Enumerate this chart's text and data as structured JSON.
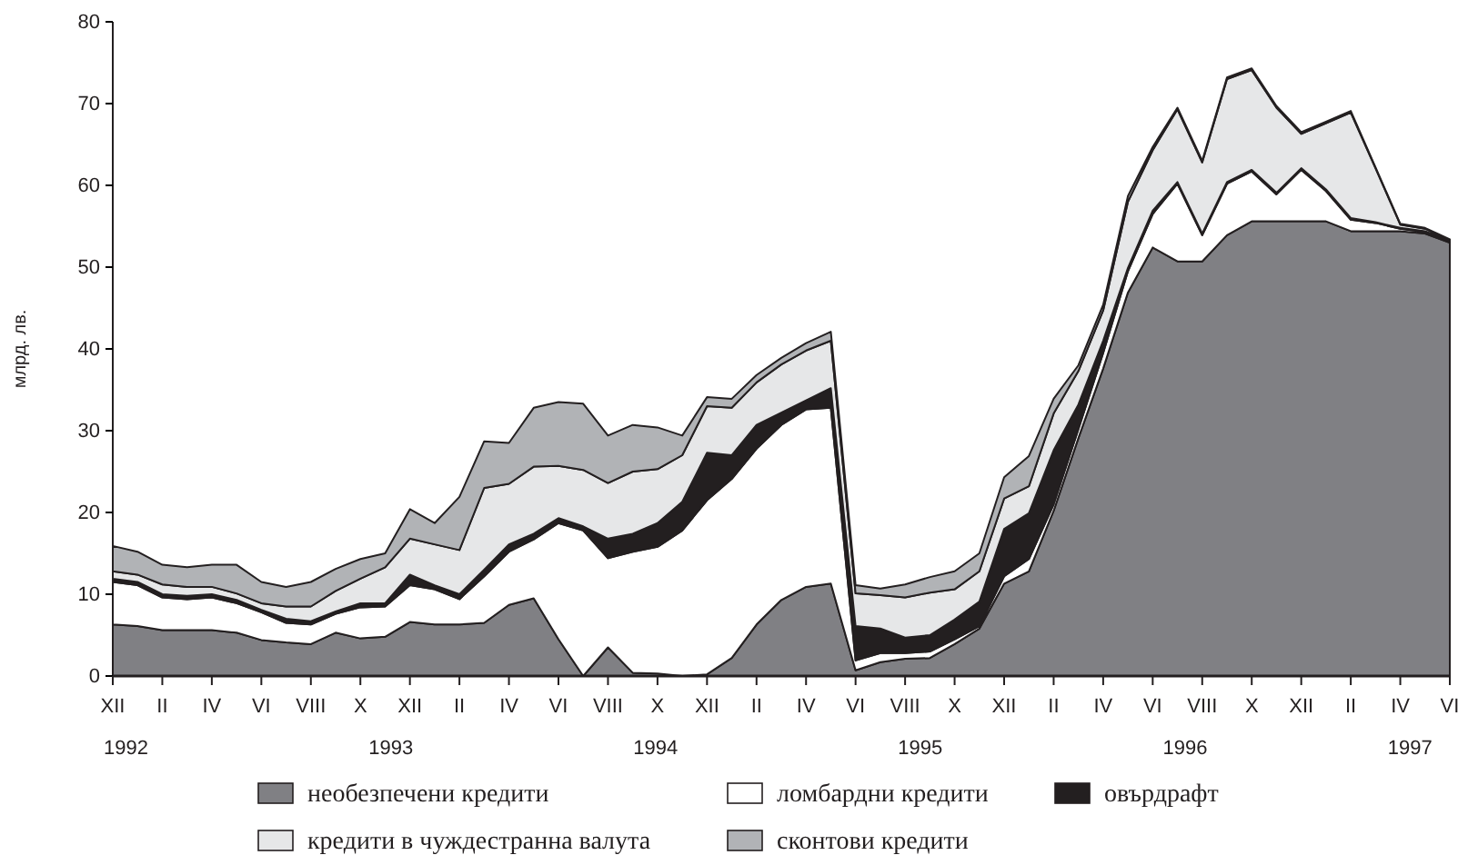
{
  "chart_data": {
    "type": "area",
    "stacked": true,
    "ylabel": "млрд. лв.",
    "legend": "bottom",
    "grid": false,
    "categories": [
      "XII",
      null,
      "II",
      null,
      "IV",
      null,
      "VI",
      null,
      "VIII",
      null,
      "X",
      null,
      "XII",
      null,
      "II",
      null,
      "IV",
      null,
      "VI",
      null,
      "VIII",
      null,
      "X",
      null,
      "XII",
      null,
      "II",
      null,
      "IV",
      null,
      "VI",
      null,
      "VIII",
      null,
      "X",
      null,
      "XII",
      null,
      "II",
      null,
      "IV",
      null,
      "VI",
      null,
      "VIII",
      null,
      "X",
      null,
      "XII",
      null,
      "II",
      null,
      "IV",
      null,
      "VI"
    ],
    "x2lim": [
      1992.45,
      1997.5
    ],
    "x2ticks": [
      {
        "value": 1992.5,
        "label": "1992"
      },
      {
        "value": 1993.5,
        "label": "1993"
      },
      {
        "value": 1994.5,
        "label": "1994"
      },
      {
        "value": 1995.5,
        "label": "1995"
      },
      {
        "value": 1996.5,
        "label": "1996"
      },
      {
        "value": 1997.35,
        "label": "1997"
      }
    ],
    "ylim": [
      0,
      80
    ],
    "yticks": [
      0,
      10,
      20,
      30,
      40,
      50,
      60,
      70,
      80
    ],
    "series": [
      {
        "name": "необезпечени кредити",
        "color": "#808084",
        "values": [
          6.3,
          6.1,
          5.6,
          5.6,
          5.6,
          5.3,
          4.4,
          4.1,
          3.9,
          5.3,
          4.6,
          4.8,
          6.6,
          6.3,
          6.3,
          6.5,
          8.7,
          9.5,
          4.5,
          0,
          3.5,
          0.4,
          0.3,
          0,
          0.2,
          2.2,
          6.3,
          9.3,
          10.9,
          11.3,
          0.7,
          1.7,
          2.1,
          2.2,
          3.9,
          5.8,
          11.3,
          12.8,
          20.2,
          29.1,
          37.6,
          46.9,
          52.4,
          50.7,
          50.7,
          53.9,
          55.6,
          55.6,
          55.6,
          55.6,
          54.4,
          54.4,
          54.4,
          54.1,
          53.0
        ]
      },
      {
        "name": "ломбардни кредити",
        "color": "#ffffff",
        "values": [
          5.2,
          5.0,
          4.0,
          3.8,
          4.0,
          3.6,
          3.4,
          2.4,
          2.4,
          2.3,
          3.8,
          3.7,
          4.5,
          4.3,
          3.1,
          5.7,
          6.5,
          7.2,
          14.2,
          17.8,
          10.9,
          14.8,
          15.5,
          17.8,
          21.3,
          21.9,
          21.5,
          21.4,
          21.7,
          21.5,
          1.2,
          1.1,
          0.7,
          0.8,
          0.6,
          0.3,
          0.9,
          1.5,
          0.8,
          1.1,
          1.9,
          2.6,
          4.1,
          9.5,
          3.2,
          6.3,
          6.1,
          3.3,
          6.3,
          3.7,
          1.4,
          1.0,
          0.3,
          0.2,
          0.1
        ]
      },
      {
        "name": "овърдрафт",
        "color": "#231f20",
        "values": [
          0.4,
          0.4,
          0.4,
          0.4,
          0.4,
          0.4,
          0.3,
          0.5,
          0.4,
          0.3,
          0.5,
          0.4,
          1.3,
          0.5,
          0.6,
          0.8,
          0.9,
          0.7,
          0.6,
          0.5,
          2.4,
          2.2,
          2.9,
          3.5,
          5.8,
          2.9,
          2.9,
          1.5,
          1.1,
          2.4,
          4.2,
          3.0,
          1.9,
          2.0,
          2.4,
          3.0,
          5.8,
          5.6,
          6.6,
          3.0,
          1.5,
          0.4,
          0.4,
          0.2,
          0.2,
          0.2,
          0.2,
          0.2,
          0.2,
          0.2,
          0.2,
          0.1,
          0.1,
          0.1,
          0.1
        ]
      },
      {
        "name": "кредити в чуждестранна валута",
        "color": "#e6e7e8",
        "values": [
          0.9,
          0.9,
          1.2,
          1.1,
          0.9,
          0.8,
          0.8,
          1.5,
          1.8,
          2.5,
          3.0,
          4.4,
          4.4,
          5.0,
          5.4,
          10.0,
          7.4,
          8.2,
          6.4,
          6.9,
          6.8,
          7.6,
          6.6,
          5.7,
          5.7,
          5.8,
          5.2,
          5.9,
          6.1,
          5.8,
          4.0,
          4.1,
          4.9,
          5.2,
          3.7,
          3.7,
          3.7,
          3.3,
          4.5,
          4.1,
          3.7,
          8.1,
          7.4,
          8.9,
          8.7,
          12.6,
          12.2,
          10.4,
          4.2,
          8.1,
          12.9,
          6.6,
          0.4,
          0.3,
          0.1
        ]
      },
      {
        "name": "сконтови кредити",
        "color": "#b1b3b6",
        "values": [
          3.1,
          2.8,
          2.4,
          2.4,
          2.7,
          3.5,
          2.6,
          2.4,
          3.0,
          2.7,
          2.4,
          1.7,
          3.6,
          2.6,
          6.5,
          5.7,
          5.0,
          7.2,
          7.8,
          8.1,
          5.8,
          5.7,
          5.1,
          2.4,
          1.1,
          1.1,
          0.9,
          0.8,
          0.9,
          1.1,
          1.0,
          0.8,
          1.6,
          1.9,
          2.2,
          2.2,
          2.6,
          3.7,
          1.8,
          0.7,
          0.7,
          0.7,
          0.4,
          0.2,
          0.2,
          0.2,
          0.2,
          0.2,
          0.2,
          0.2,
          0.2,
          0.1,
          0.1,
          0.1,
          0.1
        ]
      }
    ]
  }
}
